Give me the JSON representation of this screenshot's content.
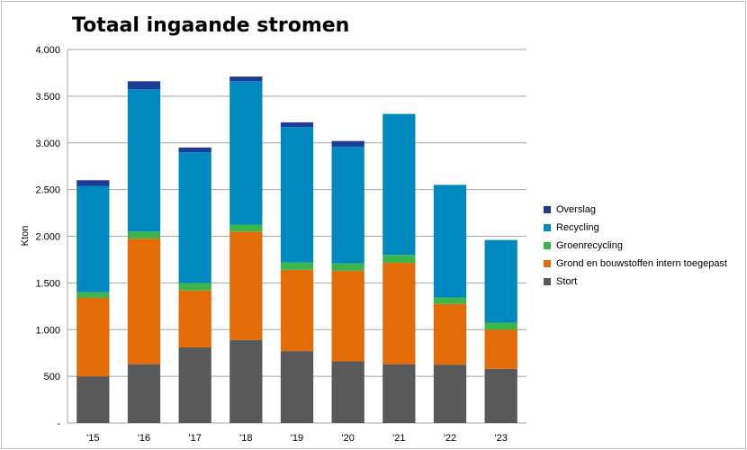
{
  "chart_data": {
    "type": "bar",
    "stacked": true,
    "title": "Totaal ingaande stromen",
    "xlabel": "",
    "ylabel": "Kton",
    "ylim": [
      0,
      4000
    ],
    "yticks": [
      0,
      500,
      1000,
      1500,
      2000,
      2500,
      3000,
      3500,
      4000
    ],
    "ytick_labels": [
      "-",
      "500",
      "1.000",
      "1.500",
      "2.000",
      "2.500",
      "3.000",
      "3.500",
      "4.000"
    ],
    "grid": true,
    "legend_position": "right",
    "categories": [
      "'15",
      "'16",
      "'17",
      "'18",
      "'19",
      "'20",
      "'21",
      "'22",
      "'23"
    ],
    "series": [
      {
        "name": "Stort",
        "color": "#595959",
        "values": [
          500,
          630,
          810,
          890,
          770,
          660,
          630,
          625,
          580
        ]
      },
      {
        "name": "Grond en bouwstoffen intern toegepast",
        "color": "#e36c09",
        "values": [
          840,
          1345,
          610,
          1160,
          870,
          970,
          1085,
          650,
          420
        ]
      },
      {
        "name": "Groenrecycling",
        "color": "#3cb54a",
        "values": [
          60,
          75,
          80,
          75,
          80,
          80,
          85,
          70,
          75
        ]
      },
      {
        "name": "Recycling",
        "color": "#0088c1",
        "values": [
          1140,
          1525,
          1400,
          1535,
          1450,
          1250,
          1510,
          1205,
          885
        ]
      },
      {
        "name": "Overslag",
        "color": "#1f3a93",
        "values": [
          60,
          85,
          50,
          50,
          50,
          60,
          0,
          0,
          0
        ]
      }
    ],
    "legend_order": [
      "Overslag",
      "Recycling",
      "Groenrecycling",
      "Grond en bouwstoffen intern toegepast",
      "Stort"
    ]
  }
}
